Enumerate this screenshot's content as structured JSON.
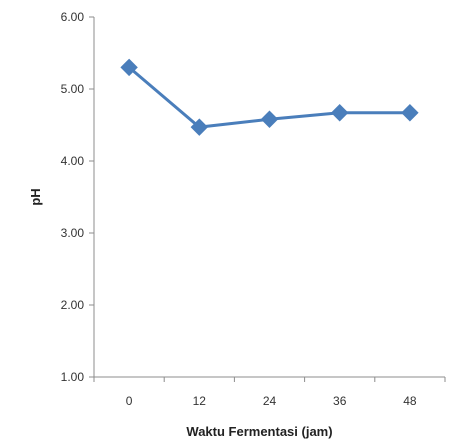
{
  "chart_data": {
    "type": "line",
    "title": "",
    "xlabel": "Waktu Fermentasi (jam)",
    "ylabel": "pH",
    "categories": [
      "0",
      "12",
      "24",
      "36",
      "48"
    ],
    "series": [
      {
        "values": [
          5.3,
          4.47,
          4.58,
          4.67,
          4.67
        ]
      }
    ],
    "ylim": [
      1.0,
      6.0
    ],
    "yticks": [
      "1.00",
      "2.00",
      "3.00",
      "4.00",
      "5.00",
      "6.00"
    ],
    "grid": false,
    "legend": "none",
    "colors": {
      "series": "#4a7ebb",
      "axis": "#8c8c8c"
    }
  }
}
